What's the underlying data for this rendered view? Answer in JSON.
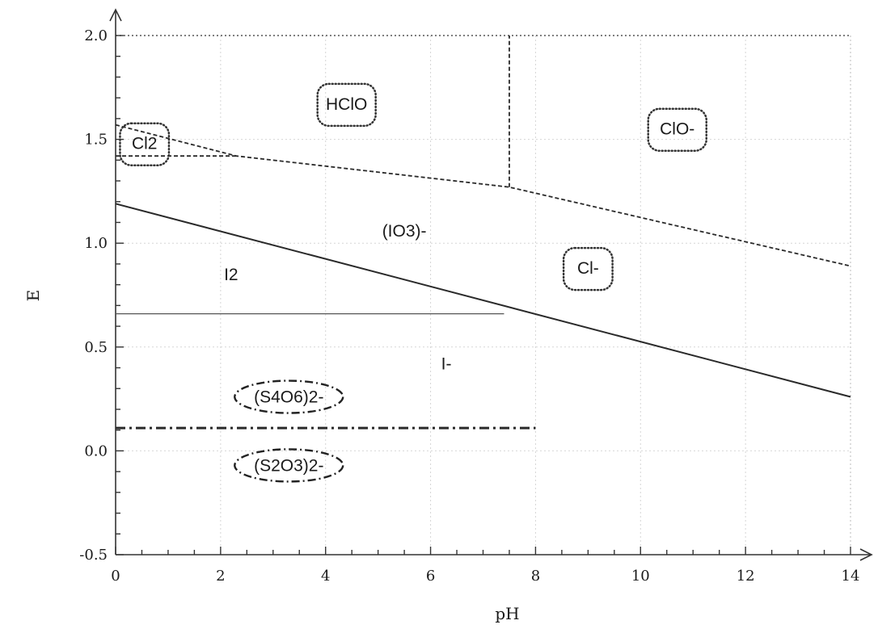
{
  "chart_data": {
    "type": "line",
    "xlabel": "pH",
    "ylabel": "E",
    "xlim": [
      0,
      14
    ],
    "ylim": [
      -0.5,
      2.0
    ],
    "x_ticks": [
      0,
      2,
      4,
      6,
      8,
      10,
      12,
      14
    ],
    "x_tick_labels": [
      "0",
      "2",
      "4",
      "6",
      "8",
      "10",
      "12",
      "14"
    ],
    "y_ticks": [
      -0.5,
      0.0,
      0.5,
      1.0,
      1.5,
      2.0
    ],
    "y_tick_labels": [
      "-0.5",
      "0.0",
      "0.5",
      "1.0",
      "1.5",
      "2.0"
    ],
    "grid": true,
    "series": [
      {
        "style": "dashed",
        "x": [
          0,
          2.3,
          7.5,
          14
        ],
        "y": [
          1.57,
          1.42,
          1.27,
          0.89
        ]
      },
      {
        "style": "dashed",
        "x": [
          0,
          2.3
        ],
        "y": [
          1.42,
          1.42
        ]
      },
      {
        "style": "dashed",
        "x": [
          7.5,
          7.5
        ],
        "y": [
          1.27,
          2.0
        ]
      },
      {
        "style": "solid",
        "x": [
          0,
          14
        ],
        "y": [
          1.19,
          0.26
        ]
      },
      {
        "style": "solid",
        "x": [
          0,
          7.4
        ],
        "y": [
          0.66,
          0.66
        ]
      },
      {
        "style": "dash-dot",
        "x": [
          0,
          8.0
        ],
        "y": [
          0.11,
          0.11
        ]
      }
    ],
    "region_labels": [
      {
        "text": "HClO",
        "x": 4.4,
        "y": 1.67,
        "box": "rounded-dotted"
      },
      {
        "text": "ClO-",
        "x": 10.7,
        "y": 1.55,
        "box": "rounded-dotted"
      },
      {
        "text": "Cl2",
        "x": 0.55,
        "y": 1.48,
        "box": "rounded-dotted"
      },
      {
        "text": "(IO3)-",
        "x": 5.5,
        "y": 1.06,
        "box": "none"
      },
      {
        "text": "Cl-",
        "x": 9.0,
        "y": 0.88,
        "box": "rounded-dotted"
      },
      {
        "text": "I2",
        "x": 2.2,
        "y": 0.85,
        "box": "none"
      },
      {
        "text": "I-",
        "x": 6.3,
        "y": 0.42,
        "box": "none"
      },
      {
        "text": "(S4O6)2-",
        "x": 3.3,
        "y": 0.26,
        "box": "dashdot-ellipse"
      },
      {
        "text": "(S2O3)2-",
        "x": 3.3,
        "y": -0.07,
        "box": "dashdot-ellipse"
      }
    ]
  }
}
